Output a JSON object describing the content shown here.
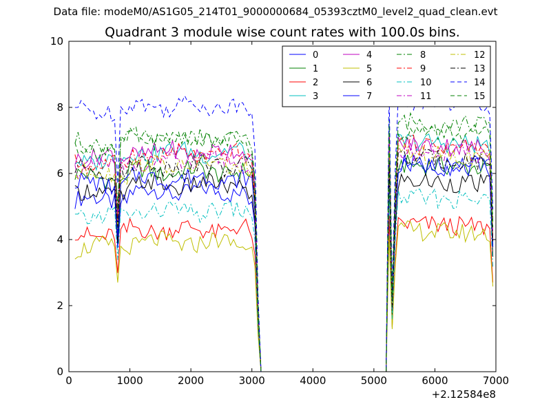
{
  "figure": {
    "suptitle": "Data file: modeM0/AS1G05_214T01_9000000684_05393cztM0_level2_quad_clean.evt"
  },
  "chart_data": {
    "type": "line",
    "title": "Quadrant 3 module wise count rates with 100.0s bins.",
    "xlabel": "",
    "ylabel": "",
    "x_offset_label": "+2.12584e8",
    "xlim": [
      0,
      7000
    ],
    "ylim": [
      0,
      10
    ],
    "x_ticks": [
      "0",
      "1000",
      "2000",
      "3000",
      "4000",
      "5000",
      "6000",
      "7000"
    ],
    "y_ticks": [
      "0",
      "2",
      "4",
      "6",
      "8",
      "10"
    ],
    "x_tick_values": [
      0,
      1000,
      2000,
      3000,
      4000,
      5000,
      6000,
      7000
    ],
    "y_tick_values": [
      0,
      2,
      4,
      6,
      8,
      10
    ],
    "grid": false,
    "legend_position": "top-right",
    "legend_columns": 4,
    "segments": [
      {
        "x_start": 100,
        "x_end": 3100,
        "step": 50
      },
      {
        "x_start": 5200,
        "x_end": 6950,
        "step": 50
      }
    ],
    "zero_gap": [
      3150,
      5150
    ],
    "series": [
      {
        "name": "0",
        "color": "#0000ff",
        "dash": "solid",
        "base1": 5.2,
        "base2": 6.4
      },
      {
        "name": "1",
        "color": "#008000",
        "dash": "solid",
        "base1": 5.9,
        "base2": 6.3
      },
      {
        "name": "2",
        "color": "#ff0000",
        "dash": "solid",
        "base1": 4.15,
        "base2": 4.5
      },
      {
        "name": "3",
        "color": "#00bfbf",
        "dash": "solid",
        "base1": 6.4,
        "base2": 7.0
      },
      {
        "name": "4",
        "color": "#bf00bf",
        "dash": "solid",
        "base1": 6.5,
        "base2": 6.9
      },
      {
        "name": "5",
        "color": "#bfbf00",
        "dash": "solid",
        "base1": 3.75,
        "base2": 4.3
      },
      {
        "name": "6",
        "color": "#000000",
        "dash": "solid",
        "base1": 5.4,
        "base2": 5.8
      },
      {
        "name": "7",
        "color": "#0000ff",
        "dash": "solid",
        "base1": 5.7,
        "base2": 6.3
      },
      {
        "name": "8",
        "color": "#008000",
        "dash": "dashdot",
        "base1": 6.9,
        "base2": 7.6
      },
      {
        "name": "9",
        "color": "#ff0000",
        "dash": "dashdot",
        "base1": 6.3,
        "base2": 6.9
      },
      {
        "name": "10",
        "color": "#00bfbf",
        "dash": "dashdot",
        "base1": 4.7,
        "base2": 5.3
      },
      {
        "name": "11",
        "color": "#bf00bf",
        "dash": "dashdot",
        "base1": 6.2,
        "base2": 6.7
      },
      {
        "name": "12",
        "color": "#bfbf00",
        "dash": "dashdot",
        "base1": 6.0,
        "base2": 6.6
      },
      {
        "name": "13",
        "color": "#000000",
        "dash": "dashdot",
        "base1": 6.1,
        "base2": 6.5
      },
      {
        "name": "14",
        "color": "#0000ff",
        "dash": "dashed",
        "base1": 7.9,
        "base2": 8.2
      },
      {
        "name": "15",
        "color": "#008000",
        "dash": "dashed",
        "base1": 6.8,
        "base2": 7.3
      }
    ]
  }
}
